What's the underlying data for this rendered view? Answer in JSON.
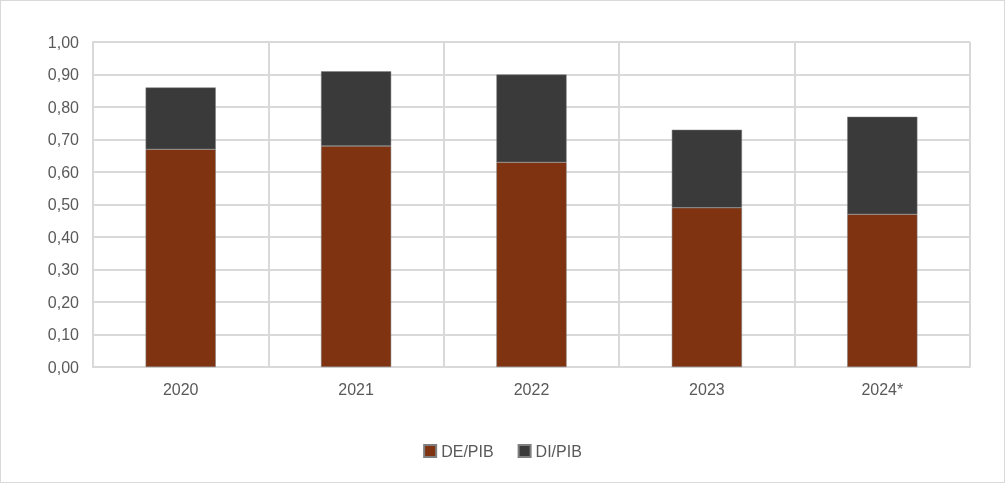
{
  "chart_data": {
    "type": "bar",
    "stacked": true,
    "categories": [
      "2020",
      "2021",
      "2022",
      "2023",
      "2024*"
    ],
    "series": [
      {
        "name": "DE/PIB",
        "color": "#7f3311",
        "values": [
          0.67,
          0.68,
          0.63,
          0.49,
          0.47
        ]
      },
      {
        "name": "DI/PIB",
        "color": "#3a3a3a",
        "values": [
          0.19,
          0.23,
          0.27,
          0.24,
          0.3
        ]
      }
    ],
    "ylim": [
      0,
      1
    ],
    "yticks": [
      {
        "value": 0,
        "label": "0,00"
      },
      {
        "value": 0.1,
        "label": "0,10"
      },
      {
        "value": 0.2,
        "label": "0,20"
      },
      {
        "value": 0.3,
        "label": "0,30"
      },
      {
        "value": 0.4,
        "label": "0,40"
      },
      {
        "value": 0.5,
        "label": "0,50"
      },
      {
        "value": 0.6,
        "label": "0,60"
      },
      {
        "value": 0.7,
        "label": "0,70"
      },
      {
        "value": 0.8,
        "label": "0,80"
      },
      {
        "value": 0.9,
        "label": "0,90"
      },
      {
        "value": 1,
        "label": "1,00"
      }
    ],
    "grid": true,
    "legend": "bottom"
  }
}
